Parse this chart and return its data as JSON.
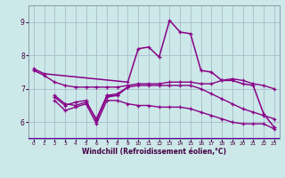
{
  "x": [
    0,
    1,
    2,
    3,
    4,
    5,
    6,
    7,
    8,
    9,
    10,
    11,
    12,
    13,
    14,
    15,
    16,
    17,
    18,
    19,
    20,
    21,
    22,
    23
  ],
  "line_main": [
    7.6,
    7.45,
    null,
    null,
    null,
    null,
    null,
    null,
    null,
    7.2,
    8.2,
    8.25,
    7.95,
    9.05,
    8.7,
    8.65,
    7.55,
    7.5,
    7.25,
    7.25,
    7.15,
    7.1,
    6.25,
    5.85
  ],
  "line_upper_flat": [
    7.55,
    7.4,
    7.2,
    7.1,
    7.05,
    7.05,
    7.05,
    7.05,
    7.05,
    7.1,
    7.15,
    7.15,
    7.15,
    7.2,
    7.2,
    7.2,
    7.15,
    7.15,
    7.25,
    7.3,
    7.25,
    7.15,
    7.1,
    7.0
  ],
  "line_mid_flat": [
    null,
    null,
    null,
    null,
    null,
    null,
    null,
    null,
    null,
    null,
    null,
    null,
    null,
    null,
    null,
    null,
    null,
    null,
    null,
    null,
    null,
    null,
    null,
    null
  ],
  "line_zigzag": [
    null,
    null,
    6.75,
    6.5,
    6.6,
    6.65,
    6.05,
    6.75,
    6.8,
    null,
    null,
    null,
    null,
    null,
    null,
    null,
    null,
    null,
    null,
    null,
    null,
    null,
    null,
    null
  ],
  "line_lower_flat": [
    null,
    null,
    6.65,
    6.35,
    6.45,
    6.55,
    5.95,
    6.65,
    6.65,
    6.55,
    6.5,
    6.5,
    6.45,
    6.45,
    6.45,
    6.4,
    6.3,
    6.2,
    6.1,
    6.0,
    5.95,
    5.95,
    5.95,
    5.8
  ],
  "line_segment_mid": [
    null,
    null,
    6.8,
    6.55,
    6.5,
    6.6,
    6.1,
    6.8,
    6.85,
    7.05,
    7.1,
    7.1,
    7.1,
    7.1,
    7.1,
    7.1,
    7.0,
    6.85,
    6.7,
    6.55,
    6.4,
    6.3,
    6.2,
    6.1
  ],
  "line_stub": [
    null,
    null,
    null,
    null,
    null,
    null,
    null,
    6.8,
    6.8,
    7.05,
    null,
    null,
    null,
    null,
    null,
    null,
    null,
    null,
    null,
    null,
    null,
    null,
    null,
    null
  ],
  "bg_color": "#cce8e8",
  "line_color": "#880088",
  "grid_color": "#aabbcc",
  "xlabel": "Windchill (Refroidissement éolien,°C)",
  "ylim": [
    5.5,
    9.5
  ],
  "xlim": [
    -0.5,
    23.5
  ],
  "yticks": [
    6,
    7,
    8,
    9
  ],
  "xticks": [
    0,
    1,
    2,
    3,
    4,
    5,
    6,
    7,
    8,
    9,
    10,
    11,
    12,
    13,
    14,
    15,
    16,
    17,
    18,
    19,
    20,
    21,
    22,
    23
  ]
}
